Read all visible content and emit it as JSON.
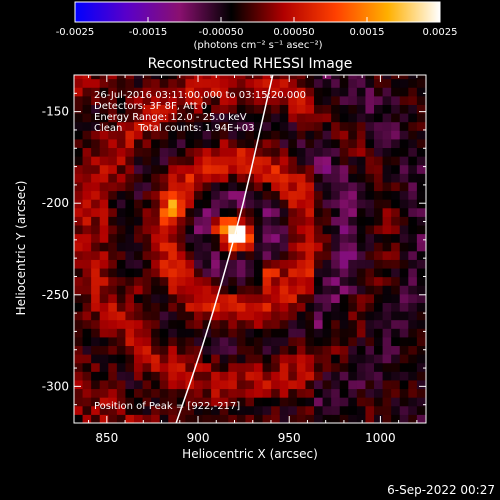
{
  "chart_data": {
    "type": "heatmap",
    "title": "Reconstructed RHESSI Image",
    "xlabel": "Heliocentric X (arcsec)",
    "ylabel": "Heliocentric Y (arcsec)",
    "xlim": [
      832,
      1025
    ],
    "ylim": [
      -320,
      -130
    ],
    "x_ticks": [
      850,
      900,
      950,
      1000
    ],
    "y_ticks": [
      -150,
      -200,
      -250,
      -300
    ],
    "colorbar": {
      "min": -0.0025,
      "max": 0.0025,
      "ticks": [
        "-0.0025",
        "-0.0015",
        "-0.00050",
        "0.00050",
        "0.0015",
        "0.0025"
      ],
      "unit_label": "(photons cm⁻² s⁻¹ asec⁻²)",
      "colors": [
        "#0000ff",
        "#5a00c8",
        "#8a1070",
        "#000000",
        "#b00000",
        "#ff4000",
        "#ffb000",
        "#ffffff"
      ]
    },
    "annotations": [
      "26-Jul-2016 03:11:00.000 to 03:15:20.000",
      "Detectors: 3F 8F, Att 0",
      "Energy Range: 12.0 - 25.0 keV",
      "Clean     Total counts: 1.94E+03"
    ],
    "peak_label": "Position of Peak = [922,-217]",
    "peak": [
      922,
      -217
    ],
    "sources": [
      {
        "x": 922,
        "y": -217,
        "intensity": 0.0025
      },
      {
        "x": 887,
        "y": -203,
        "intensity": 0.0016
      },
      {
        "x": 913,
        "y": -212,
        "intensity": 0.0014
      },
      {
        "x": 938,
        "y": -237,
        "intensity": 0.0015
      },
      {
        "x": 870,
        "y": -245,
        "intensity": 0.0009
      }
    ],
    "limb_curve": [
      [
        888,
        -320
      ],
      [
        902,
        -280
      ],
      [
        914,
        -240
      ],
      [
        925,
        -200
      ],
      [
        934,
        -160
      ],
      [
        941,
        -130
      ]
    ],
    "limb_color": "#ffffff",
    "background_color": "#000000"
  },
  "footer": {
    "date": "6-Sep-2022 00:27"
  }
}
